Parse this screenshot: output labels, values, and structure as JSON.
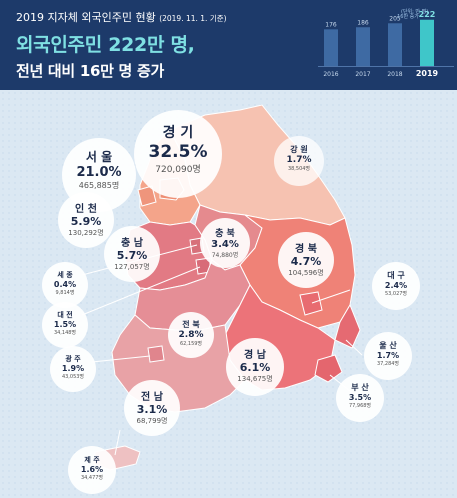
{
  "header": {
    "subtitle": "2019 지자체 외국인주민 현황",
    "subtitle_note": "(2019. 11. 1. 기준)",
    "title_line1": "외국인주민 222만 명,",
    "title_line2": "전년 대비 16만 명 증가",
    "mini_chart_tag": "(단위: 만 명)",
    "bar_badge": "16만 증가"
  },
  "chart_data": {
    "type": "bar",
    "categories": [
      "2016",
      "2017",
      "2018",
      "2019"
    ],
    "values": [
      176,
      186,
      205,
      222
    ],
    "title": "",
    "xlabel": "",
    "ylabel": "",
    "ylim": [
      0,
      240
    ]
  },
  "colors": {
    "header_bg": "#1d3a6a",
    "accent": "#7fe0e3",
    "sea_bg": "#dbe8f3",
    "gyeonggi": "#f4a48a",
    "gangwon": "#f6c2b1",
    "chungbuk": "#e58a8e",
    "gyeongbuk": "#ef8277",
    "chungnam": "#e27a84",
    "jeonbuk": "#e58e96",
    "jeonnam": "#e8a2a6",
    "gyeongnam": "#ec7379",
    "jeju": "#eec1c2"
  },
  "regions": {
    "gyeonggi": {
      "name": "경 기",
      "pct": "32.5%",
      "count": "720,090명"
    },
    "seoul": {
      "name": "서 울",
      "pct": "21.0%",
      "count": "465,885명"
    },
    "incheon": {
      "name": "인 천",
      "pct": "5.9%",
      "count": "130,292명"
    },
    "gangwon": {
      "name": "강 원",
      "pct": "1.7%",
      "count": "38,504명"
    },
    "chungbuk": {
      "name": "충 북",
      "pct": "3.4%",
      "count": "74,880명"
    },
    "chungnam": {
      "name": "충 남",
      "pct": "5.7%",
      "count": "127,057명"
    },
    "gyeongbuk": {
      "name": "경 북",
      "pct": "4.7%",
      "count": "104,596명"
    },
    "sejong": {
      "name": "세 종",
      "pct": "0.4%",
      "count": "9,814명"
    },
    "daejeon": {
      "name": "대 전",
      "pct": "1.5%",
      "count": "34,148명"
    },
    "daegu": {
      "name": "대 구",
      "pct": "2.4%",
      "count": "53,027명"
    },
    "jeonbuk": {
      "name": "전 북",
      "pct": "2.8%",
      "count": "62,159명"
    },
    "gwangju": {
      "name": "광 주",
      "pct": "1.9%",
      "count": "43,053명"
    },
    "ulsan": {
      "name": "울 산",
      "pct": "1.7%",
      "count": "37,284명"
    },
    "gyeongnam": {
      "name": "경 남",
      "pct": "6.1%",
      "count": "134,675명"
    },
    "jeonnam": {
      "name": "전 남",
      "pct": "3.1%",
      "count": "68,799명"
    },
    "busan": {
      "name": "부 산",
      "pct": "3.5%",
      "count": "77,968명"
    },
    "jeju": {
      "name": "제 주",
      "pct": "1.6%",
      "count": "34,477명"
    }
  }
}
